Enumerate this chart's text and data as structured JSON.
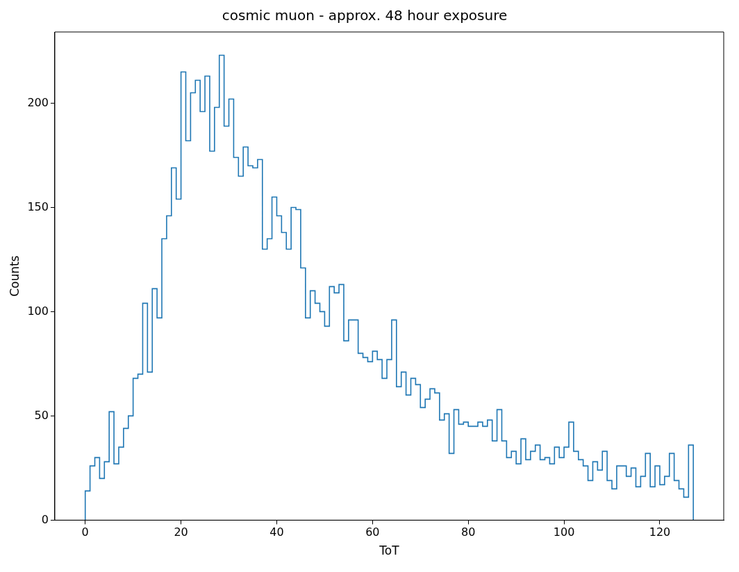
{
  "chart_data": {
    "type": "histogram",
    "title": "cosmic muon - approx. 48 hour exposure",
    "xlabel": "ToT",
    "ylabel": "Counts",
    "color": "#1f77b4",
    "bins": [
      0,
      1,
      2,
      3,
      4,
      5,
      6,
      7,
      8,
      9,
      10,
      11,
      12,
      13,
      14,
      15,
      16,
      17,
      18,
      19,
      20,
      21,
      22,
      23,
      24,
      25,
      26,
      27,
      28,
      29,
      30,
      31,
      32,
      33,
      34,
      35,
      36,
      37,
      38,
      39,
      40,
      41,
      42,
      43,
      44,
      45,
      46,
      47,
      48,
      49,
      50,
      51,
      52,
      53,
      54,
      55,
      56,
      57,
      58,
      59,
      60,
      61,
      62,
      63,
      64,
      65,
      66,
      67,
      68,
      69,
      70,
      71,
      72,
      73,
      74,
      75,
      76,
      77,
      78,
      79,
      80,
      81,
      82,
      83,
      84,
      85,
      86,
      87,
      88,
      89,
      90,
      91,
      92,
      93,
      94,
      95,
      96,
      97,
      98,
      99,
      100,
      101,
      102,
      103,
      104,
      105,
      106,
      107,
      108,
      109,
      110,
      111,
      112,
      113,
      114,
      115,
      116,
      117,
      118,
      119,
      120,
      121,
      122,
      123,
      124,
      125,
      126,
      127
    ],
    "values": [
      14,
      26,
      30,
      20,
      28,
      52,
      27,
      35,
      44,
      50,
      68,
      70,
      104,
      71,
      111,
      97,
      135,
      146,
      169,
      154,
      215,
      182,
      205,
      211,
      196,
      213,
      177,
      198,
      223,
      189,
      202,
      174,
      165,
      179,
      170,
      169,
      173,
      130,
      135,
      155,
      146,
      138,
      130,
      150,
      149,
      121,
      97,
      110,
      104,
      100,
      93,
      112,
      109,
      113,
      86,
      96,
      96,
      80,
      78,
      76,
      81,
      77,
      68,
      77,
      96,
      64,
      71,
      60,
      68,
      65,
      54,
      58,
      63,
      61,
      48,
      51,
      32,
      53,
      46,
      47,
      45,
      45,
      47,
      45,
      48,
      38,
      53,
      38,
      30,
      33,
      27,
      39,
      29,
      33,
      36,
      29,
      30,
      27,
      35,
      30,
      35,
      47,
      33,
      29,
      26,
      19,
      28,
      24,
      33,
      19,
      15,
      26,
      26,
      21,
      25,
      16,
      21,
      32,
      16,
      26,
      17,
      21,
      32,
      19,
      15,
      11,
      36
    ],
    "xlim": [
      -6.35,
      133.35
    ],
    "ylim": [
      0,
      234.15
    ],
    "xticks": [
      0,
      20,
      40,
      60,
      80,
      100,
      120
    ],
    "yticks": [
      0,
      50,
      100,
      150,
      200
    ],
    "grid": false,
    "legend": false
  }
}
